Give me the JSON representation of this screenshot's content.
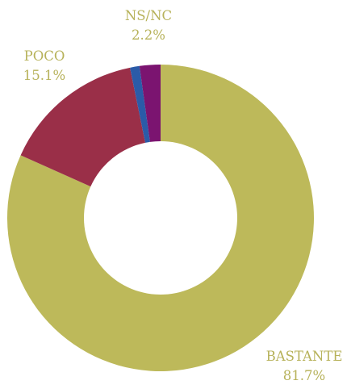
{
  "chart_data": {
    "type": "pie",
    "donut": true,
    "legend": "none",
    "slices": [
      {
        "label": "BASTANTE",
        "value": 81.7,
        "display": "81.7%",
        "color": "#bdb95a"
      },
      {
        "label": "POCO",
        "value": 15.1,
        "display": "15.1%",
        "color": "#9a2f48"
      },
      {
        "label": "",
        "value": 1.0,
        "display": "",
        "color": "#2b5ba8"
      },
      {
        "label": "NS/NC",
        "value": 2.2,
        "display": "2.2%",
        "color": "#7b1470"
      }
    ],
    "label_color": "#b7b25a"
  }
}
